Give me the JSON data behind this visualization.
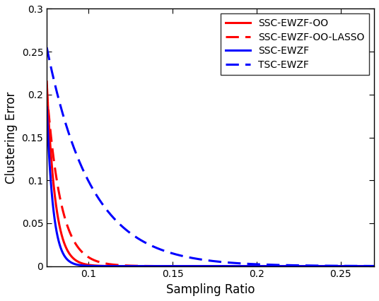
{
  "title": "",
  "xlabel": "Sampling Ratio",
  "ylabel": "Clustering Error",
  "xlim": [
    0.075,
    0.27
  ],
  "ylim": [
    0,
    0.3
  ],
  "xticks": [
    0.1,
    0.15,
    0.2,
    0.25
  ],
  "yticks": [
    0.0,
    0.05,
    0.1,
    0.15,
    0.2,
    0.25,
    0.3
  ],
  "lines": [
    {
      "label": "SSC-EWZF-OO",
      "color": "#ff0000",
      "linestyle": "solid",
      "linewidth": 2.2,
      "y_start": 0.215,
      "x_start": 0.075,
      "decay": 200
    },
    {
      "label": "SSC-EWZF-OO-LASSO",
      "color": "#ff0000",
      "linestyle": "dashed",
      "linewidth": 2.2,
      "y_start": 0.205,
      "x_start": 0.075,
      "decay": 120
    },
    {
      "label": "SSC-EWZF",
      "color": "#0000ff",
      "linestyle": "solid",
      "linewidth": 2.2,
      "y_start": 0.185,
      "x_start": 0.075,
      "decay": 260
    },
    {
      "label": "TSC-EWZF",
      "color": "#0000ff",
      "linestyle": "dashed",
      "linewidth": 2.2,
      "y_start": 0.255,
      "x_start": 0.075,
      "decay": 38
    }
  ],
  "legend_fontsize": 10,
  "axis_fontsize": 12,
  "tick_fontsize": 10,
  "background": "#ffffff"
}
